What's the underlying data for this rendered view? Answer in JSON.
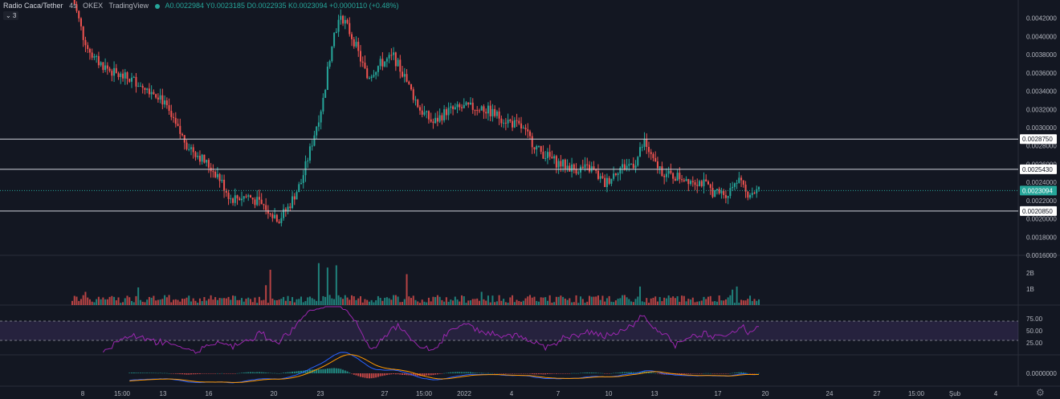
{
  "legend": {
    "symbol": "Radio Caca/Tether",
    "interval": "4s",
    "exchange": "OKEX",
    "source": "TradingView",
    "ohlc": "A0.0022984  Y0.0023185  D0.0022935  K0.0023094  +0.0000110 (+0.48%)",
    "collapse_label": "⌄ 3"
  },
  "settings_icon": "gear-icon",
  "colors": {
    "up": "#26a69a",
    "down": "#ef5350",
    "background": "#131722",
    "rsi": "#9c27b0",
    "macd": "#2962ff",
    "signal": "#ff9800"
  },
  "chart_data": {
    "type": "candlestick",
    "price_axis": {
      "range": [
        0.0016,
        0.0044
      ],
      "ticks": [
        "0.0042000",
        "0.0040000",
        "0.0038000",
        "0.0036000",
        "0.0034000",
        "0.0032000",
        "0.0030000",
        "0.0028000",
        "0.0026000",
        "0.0024000",
        "0.0022000",
        "0.0020000",
        "0.0018000",
        "0.0016000"
      ],
      "tick_values": [
        0.0042,
        0.004,
        0.0038,
        0.0036,
        0.0034,
        0.0032,
        0.003,
        0.0028,
        0.0026,
        0.0024,
        0.0022,
        0.002,
        0.0018,
        0.0016
      ]
    },
    "x_axis": {
      "labels": [
        "8",
        "15:00",
        "13",
        "16",
        "20",
        "23",
        "27",
        "15:00",
        "2022",
        "4",
        "7",
        "10",
        "13",
        "17",
        "20",
        "24",
        "27",
        "15:00",
        "Şub",
        "4"
      ]
    },
    "horizontal_levels": [
      {
        "value": 0.002875,
        "label": "0.0028750"
      },
      {
        "value": 0.002543,
        "label": "0.0025430"
      },
      {
        "value": 0.002085,
        "label": "0.0020850"
      }
    ],
    "last_price": {
      "value": 0.0023094,
      "label": "0.0023094"
    },
    "price_path": [
      [
        0,
        0.00445
      ],
      [
        5,
        0.004
      ],
      [
        10,
        0.00375
      ],
      [
        20,
        0.00358
      ],
      [
        30,
        0.0035
      ],
      [
        40,
        0.00335
      ],
      [
        46,
        0.00305
      ],
      [
        52,
        0.00282
      ],
      [
        58,
        0.00268
      ],
      [
        66,
        0.00248
      ],
      [
        72,
        0.00222
      ],
      [
        80,
        0.00225
      ],
      [
        88,
        0.00212
      ],
      [
        94,
        0.002
      ],
      [
        98,
        0.00212
      ],
      [
        104,
        0.0024
      ],
      [
        108,
        0.00275
      ],
      [
        114,
        0.0033
      ],
      [
        118,
        0.00395
      ],
      [
        122,
        0.00425
      ],
      [
        128,
        0.00395
      ],
      [
        134,
        0.00355
      ],
      [
        140,
        0.0037
      ],
      [
        146,
        0.00378
      ],
      [
        152,
        0.0035
      ],
      [
        158,
        0.0032
      ],
      [
        164,
        0.00305
      ],
      [
        170,
        0.00318
      ],
      [
        178,
        0.00322
      ],
      [
        186,
        0.00322
      ],
      [
        194,
        0.00312
      ],
      [
        204,
        0.003
      ],
      [
        212,
        0.00275
      ],
      [
        220,
        0.00262
      ],
      [
        228,
        0.00255
      ],
      [
        236,
        0.00255
      ],
      [
        242,
        0.00238
      ],
      [
        248,
        0.00255
      ],
      [
        256,
        0.00262
      ],
      [
        260,
        0.00285
      ],
      [
        264,
        0.00262
      ],
      [
        270,
        0.00248
      ],
      [
        278,
        0.00245
      ],
      [
        286,
        0.0024
      ],
      [
        292,
        0.00228
      ],
      [
        298,
        0.00228
      ],
      [
        302,
        0.00245
      ],
      [
        306,
        0.00228
      ],
      [
        312,
        0.00231
      ]
    ],
    "volume": {
      "ticks": [
        "2B",
        "1B"
      ],
      "tick_values": [
        2,
        1
      ]
    },
    "rsi": {
      "ticks": [
        "75.00",
        "50.00",
        "25.00"
      ],
      "tick_values": [
        75,
        50,
        25
      ],
      "bands": [
        70,
        30
      ]
    },
    "macd": {
      "ticks": [
        "0.0000000"
      ],
      "tick_values": [
        0
      ]
    }
  }
}
